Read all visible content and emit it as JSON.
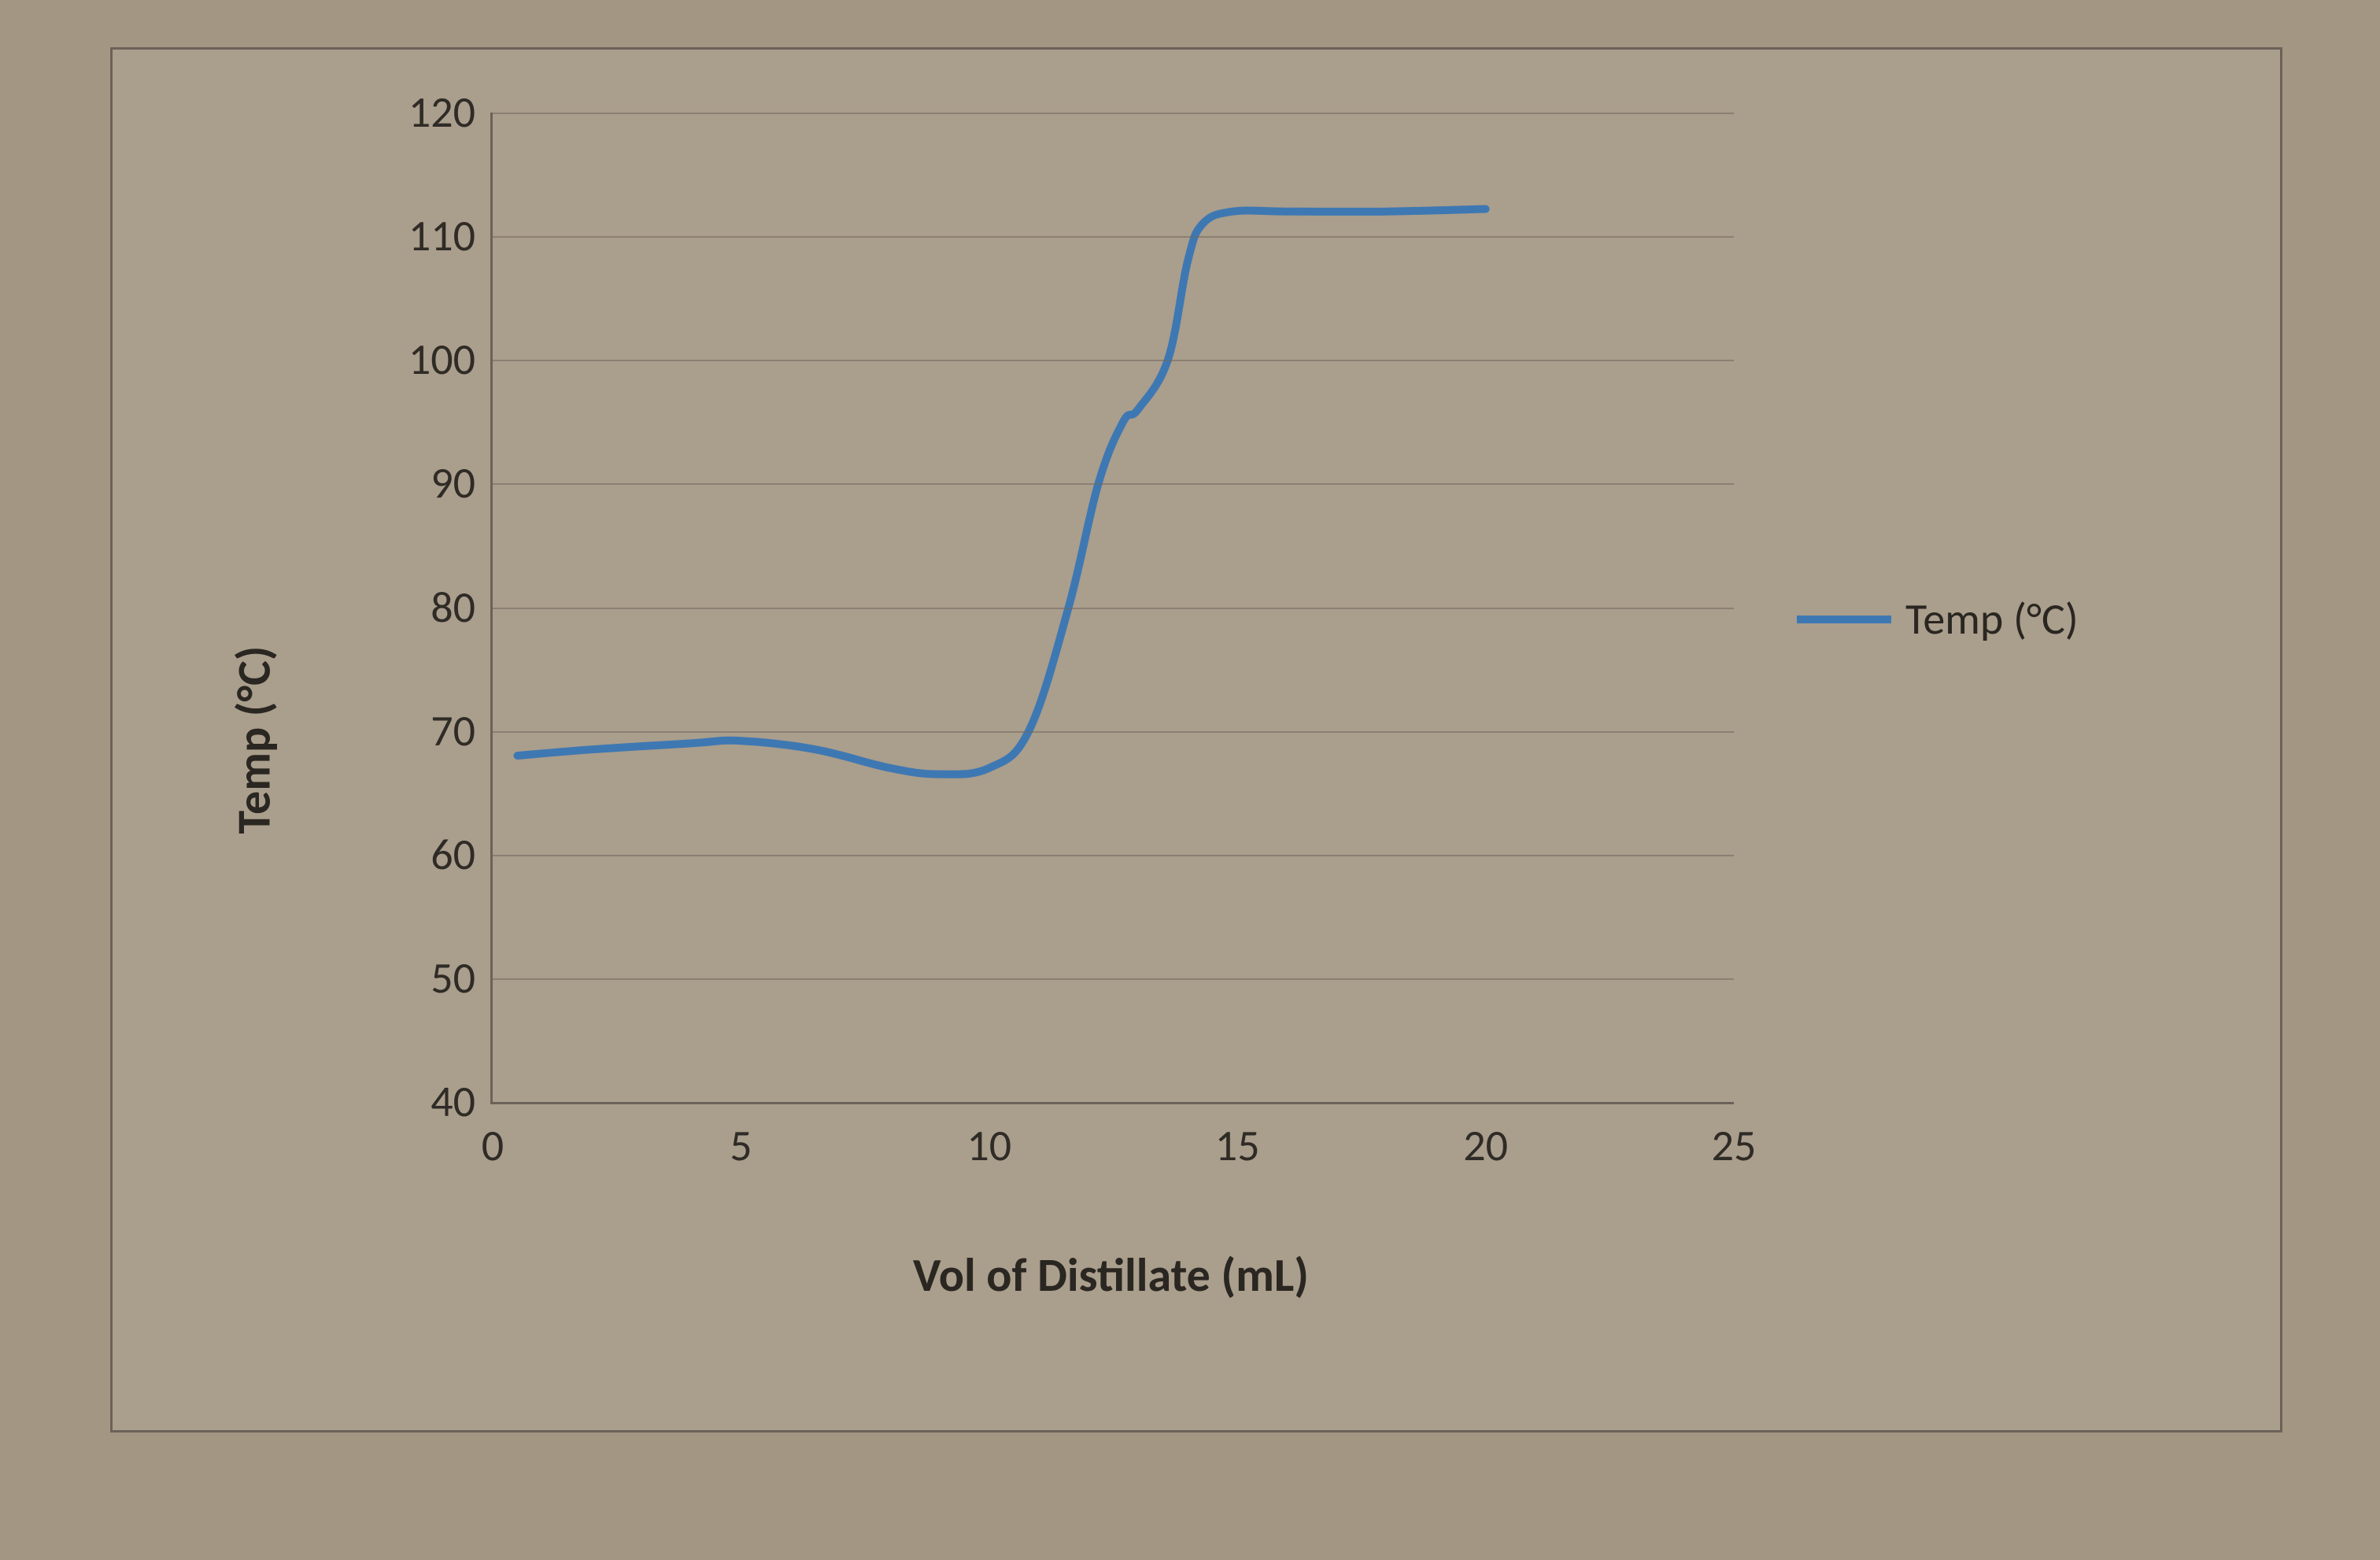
{
  "chart": {
    "type": "line",
    "ylabel": "Temp (°C)",
    "xlabel": "Vol of Distillate (mL)",
    "label_fontsize": 60,
    "tick_fontsize": 56,
    "xlim": [
      0,
      25
    ],
    "ylim": [
      40,
      120
    ],
    "x_ticks": [
      0,
      5,
      10,
      15,
      20,
      25
    ],
    "y_ticks": [
      40,
      50,
      60,
      70,
      80,
      90,
      100,
      110,
      120
    ],
    "grid_color": "#6f675c",
    "axis_color": "#6b6258",
    "background_color": "#aa9e8c",
    "page_background": "#a39683",
    "text_color": "#2a2621",
    "line_color": "#3e78b3",
    "line_width": 10,
    "legend": {
      "label": "Temp (°C)",
      "position": "right-middle"
    },
    "series": {
      "name": "Temp (°C)",
      "x": [
        0.5,
        2,
        4,
        5,
        6.5,
        8,
        9,
        10,
        10.8,
        11.6,
        12.2,
        12.7,
        13.0,
        13.6,
        14.0,
        14.3,
        14.9,
        16,
        18,
        20
      ],
      "y": [
        68,
        68.5,
        69,
        69.2,
        68.5,
        67,
        66.5,
        67,
        70,
        80,
        90,
        95,
        96,
        100,
        108,
        111,
        112,
        112,
        112,
        112.2
      ]
    }
  }
}
